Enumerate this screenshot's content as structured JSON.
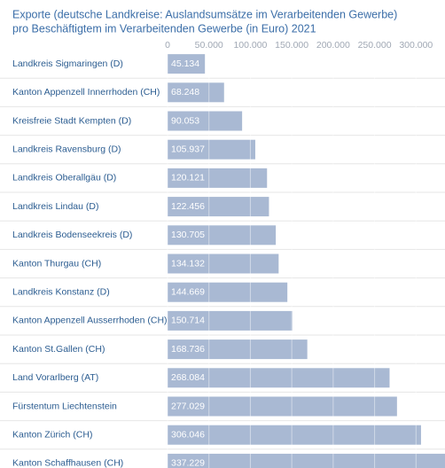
{
  "chart_data": {
    "type": "bar",
    "orientation": "horizontal",
    "title": [
      "Exporte (deutsche Landkreise: Auslandsumsätze im Verarbeitenden Gewerbe)",
      "pro Beschäftigtem im Verarbeitenden Gewerbe (in Euro) 2021"
    ],
    "categories": [
      "Landkreis Sigmaringen (D)",
      "Kanton Appenzell Innerrhoden (CH)",
      "Kreisfreie Stadt Kempten (D)",
      "Landkreis Ravensburg (D)",
      "Landkreis Oberallgäu (D)",
      "Landkreis Lindau (D)",
      "Landkreis Bodenseekreis (D)",
      "Kanton Thurgau (CH)",
      "Landkreis Konstanz (D)",
      "Kanton Appenzell Ausserrhoden (CH)",
      "Kanton St.Gallen (CH)",
      "Land Vorarlberg (AT)",
      "Fürstentum Liechtenstein",
      "Kanton Zürich (CH)",
      "Kanton Schaffhausen (CH)"
    ],
    "values": [
      45134,
      68248,
      90053,
      105937,
      120121,
      122456,
      130705,
      134132,
      144669,
      150714,
      168736,
      268084,
      277029,
      306046,
      337229
    ],
    "value_labels": [
      "45.134",
      "68.248",
      "90.053",
      "105.937",
      "120.121",
      "122.456",
      "130.705",
      "134.132",
      "144.669",
      "150.714",
      "168.736",
      "268.084",
      "277.029",
      "306.046",
      "337.229"
    ],
    "color": "#a9b9d3",
    "xlim": [
      0,
      335000
    ],
    "xticks": [
      0,
      {
        "value": 50000,
        "label": "50.000"
      },
      {
        "value": 100000,
        "label": "100.000"
      },
      {
        "value": 150000,
        "label": "150.000"
      },
      {
        "value": 200000,
        "label": "200.000"
      },
      {
        "value": 250000,
        "label": "250.000"
      },
      {
        "value": 300000,
        "label": "300.000"
      }
    ],
    "grid": true
  }
}
